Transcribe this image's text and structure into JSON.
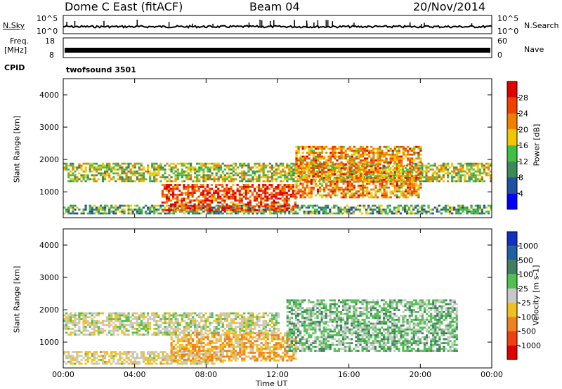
{
  "header": {
    "station": "Dome C East (fitACF)",
    "beam": "Beam 04",
    "date": "20/Nov/2014"
  },
  "noise_panel": {
    "left_label": "N.Sky",
    "right_label": "N.Search",
    "left_ticks": [
      "10^5",
      "10^0"
    ],
    "right_ticks": [
      "10^5",
      "10^0"
    ]
  },
  "freq_panel": {
    "left_label_1": "Freq.",
    "left_label_2": "[MHz]",
    "right_label": "Nave",
    "left_ticks": [
      "18",
      "8"
    ],
    "right_ticks": [
      "60",
      "0"
    ]
  },
  "cpid": {
    "label": "CPID",
    "program": "twofsound 3501"
  },
  "chart_data": [
    {
      "type": "heatmap",
      "title": "",
      "ylabel": "Slant Range [km]",
      "xlabel": "",
      "y_ticks": [
        "1000",
        "2000",
        "3000",
        "4000"
      ],
      "ylim": [
        200,
        4500
      ],
      "xlim": [
        "00:00",
        "24:00"
      ],
      "colorbar_label": "Power [dB]",
      "colorbar_ticks": [
        "4",
        "8",
        "12",
        "16",
        "20",
        "24",
        "28"
      ],
      "colorbar_colors": [
        "#0000ff",
        "#2050a0",
        "#3c8a5a",
        "#40c040",
        "#f0c800",
        "#f08000",
        "#f04000",
        "#e00000"
      ],
      "bands": [
        {
          "start": 0.0,
          "end": 24.0,
          "range_low": 1300,
          "range_high": 1900,
          "power": 16
        },
        {
          "start": 0.0,
          "end": 24.0,
          "range_low": 300,
          "range_high": 600,
          "power": 12
        },
        {
          "start": 5.5,
          "end": 13.0,
          "range_low": 400,
          "range_high": 1200,
          "power": 26
        },
        {
          "start": 13.0,
          "end": 20.0,
          "range_low": 800,
          "range_high": 2400,
          "power": 22
        }
      ]
    },
    {
      "type": "heatmap",
      "title": "",
      "ylabel": "Slant Range [km]",
      "xlabel": "Time UT",
      "x_ticks": [
        "00:00",
        "04:00",
        "08:00",
        "12:00",
        "16:00",
        "20:00",
        "00:00"
      ],
      "y_ticks": [
        "1000",
        "2000",
        "3000",
        "4000"
      ],
      "ylim": [
        200,
        4500
      ],
      "colorbar_label": "Velocity [m s-1]",
      "colorbar_ticks": [
        "1000",
        "500",
        "100",
        "25",
        "-25",
        "-100",
        "-500",
        "-1000"
      ],
      "colorbar_colors": [
        "#1030c0",
        "#2060a0",
        "#408060",
        "#50c050",
        "#c8c8c8",
        "#f0c020",
        "#f08020",
        "#f04010",
        "#e00000"
      ],
      "bands": [
        {
          "start": 0.0,
          "end": 12.0,
          "range_low": 1200,
          "range_high": 1900,
          "velocity": 0
        },
        {
          "start": 0.0,
          "end": 9.0,
          "range_low": 300,
          "range_high": 700,
          "velocity": -100
        },
        {
          "start": 6.0,
          "end": 13.0,
          "range_low": 400,
          "range_high": 1300,
          "velocity": -300
        },
        {
          "start": 12.5,
          "end": 22.0,
          "range_low": 700,
          "range_high": 2300,
          "velocity": 200
        }
      ]
    }
  ]
}
